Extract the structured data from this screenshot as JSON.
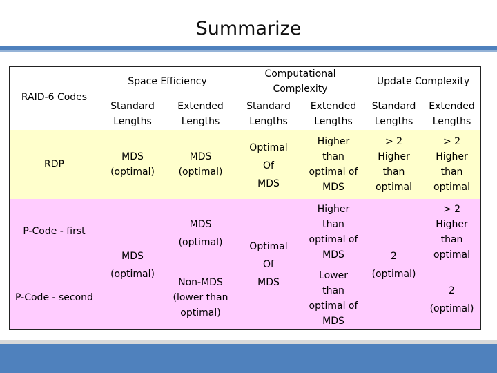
{
  "slide": {
    "title": "Summarize"
  },
  "table": {
    "header": {
      "codes": "RAID-6 Codes",
      "space": "Space Efficiency",
      "comp": "Computational Complexity",
      "update": "Update Complexity",
      "sub_standard": "Standard Lengths",
      "sub_extended": "Extended Lengths"
    },
    "rdp": {
      "label": "RDP",
      "space_std": "MDS\n(optimal)",
      "space_ext": "MDS\n(optimal)",
      "comp_std": "Optimal\nOf\nMDS",
      "comp_ext": "Higher\nthan\noptimal of\nMDS",
      "upd_std": "> 2\nHigher\nthan\noptimal",
      "upd_ext": "> 2\nHigher\nthan\noptimal"
    },
    "pcode_first": {
      "label": "P-Code - first",
      "space_ext": "MDS\n(optimal)",
      "comp_ext": "Higher\nthan\noptimal of\nMDS",
      "upd_ext": "> 2\nHigher\nthan\noptimal"
    },
    "pcode_second": {
      "label": "P-Code - second",
      "space_ext": "Non-MDS\n(lower than\noptimal)",
      "comp_ext": "Lower\nthan\noptimal of\nMDS",
      "upd_ext": "2\n(optimal)"
    },
    "pcode_shared": {
      "space_std": "MDS\n(optimal)",
      "comp_std": "Optimal\nOf\nMDS",
      "upd_std": "2\n(optimal)"
    }
  }
}
